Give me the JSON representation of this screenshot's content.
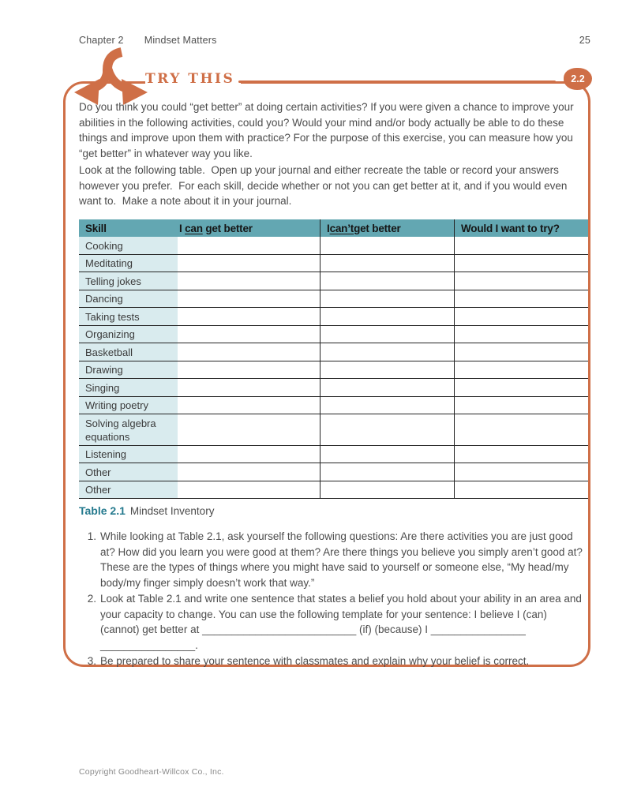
{
  "header": {
    "chapter": "Chapter 2",
    "title": "Mindset Matters",
    "page_number": "25"
  },
  "try_this": {
    "label": "TRY THIS",
    "badge": "2.2",
    "paragraph1": "Do you think you could “get better” at doing certain activities? If you were given a chance to improve your abilities in the following activities, could you? Would your mind and/or body actually be able to do these things and improve upon them with practice? For the purpose of this exercise, you can measure how you “get better” in whatever way you like.",
    "paragraph2": "Look at the following table.  Open up your journal and either recreate the table or record your answers however you prefer.  For each skill, decide whether or not you can get better at it, and if you would even want to.  Make a note about it in your journal."
  },
  "table": {
    "headers": {
      "skill": "Skill",
      "can": {
        "prefix": "I ",
        "word": "can",
        "suffix": " get better"
      },
      "cant": {
        "prefix": "I ",
        "word": "can’t",
        "suffix": " get better"
      },
      "try": "Would I want to try?"
    },
    "rows": [
      "Cooking",
      "Meditating",
      "Telling jokes",
      "Dancing",
      "Taking tests",
      "Organizing",
      "Basketball",
      "Drawing",
      "Singing",
      "Writing poetry",
      "Solving algebra equations",
      "Listening",
      "Other",
      "Other"
    ]
  },
  "caption": {
    "label": "Table 2.1",
    "text": "Mindset Inventory"
  },
  "list": {
    "items": [
      {
        "num": "1.",
        "text": "While looking at Table 2.1, ask yourself the following questions: Are there activities you are just good at? How did you learn you were good at them? Are there things you believe you simply aren’t good at? These are the types of things where you might have said to yourself or someone else, “My head/my body/my finger simply doesn’t work that way.”"
      },
      {
        "num": "2.",
        "text": "Look at Table 2.1 and write one sentence that states a belief you hold about your ability in an area and your capacity to change. You can use the following template for your sentence: I believe I (can) (cannot) get better at __________________________ (if) (because) I ________________ ________________."
      },
      {
        "num": "3.",
        "text": "Be prepared to share your sentence with classmates and explain why your belief is correct."
      }
    ]
  },
  "footer": {
    "copyright": "Copyright Goodheart-Willcox Co., Inc."
  },
  "colors": {
    "accent_orange": "#cf6f47",
    "table_header_bg": "#63a7b2",
    "skill_column_bg": "#d9ebee",
    "caption_teal": "#257a8e"
  },
  "icons": {
    "branching_arrows": "branching-arrows-icon"
  }
}
